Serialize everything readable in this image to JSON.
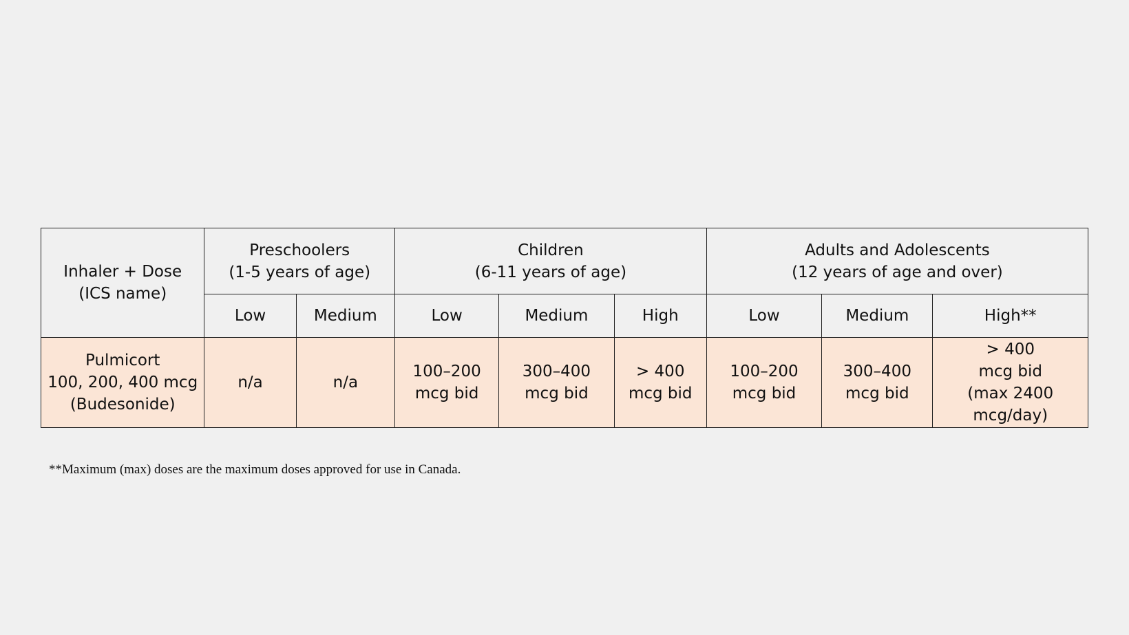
{
  "table": {
    "row_header": "Inhaler + Dose\n(ICS name)",
    "groups": {
      "preschoolers": "Preschoolers\n(1-5 years of age)",
      "children": "Children\n(6-11 years of age)",
      "adults": "Adults and Adolescents\n(12 years of age and over)"
    },
    "levels": {
      "preschoolers": [
        "Low",
        "Medium"
      ],
      "children": [
        "Low",
        "Medium",
        "High"
      ],
      "adults": [
        "Low",
        "Medium",
        "High**"
      ]
    },
    "rows": [
      {
        "inhaler": "Pulmicort\n100, 200, 400 mcg\n(Budesonide)",
        "preschoolers": [
          "n/a",
          "n/a"
        ],
        "children": [
          "100–200\nmcg bid",
          "300–400\nmcg bid",
          "> 400\nmcg bid"
        ],
        "adults": [
          "100–200\nmcg bid",
          "300–400\nmcg bid",
          "> 400\nmcg bid\n(max 2400\nmcg/day)"
        ]
      }
    ]
  },
  "footnote": "**Maximum (max) doses are the maximum doses approved for use in Canada.",
  "colors": {
    "background": "#f0f0f0",
    "data_row_fill": "#fbe5d6",
    "border": "#222222"
  }
}
